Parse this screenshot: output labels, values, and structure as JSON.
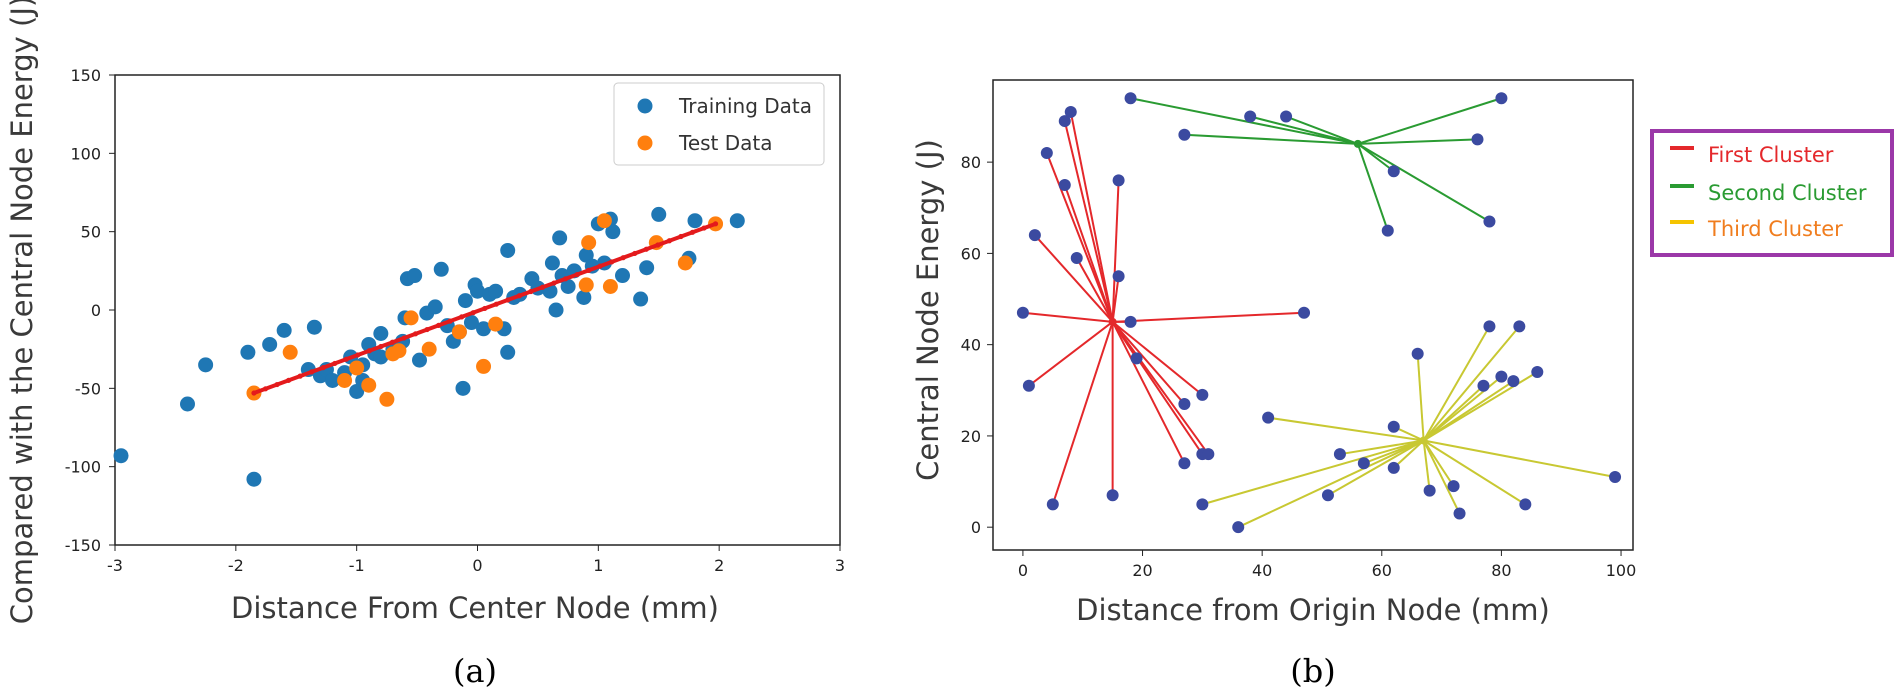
{
  "chart_data": [
    {
      "id": "a",
      "type": "scatter",
      "caption": "(a)",
      "xlabel": "Distance From Center Node (mm)",
      "ylabel": "Compared with the Central Node Energy (J)",
      "xlim": [
        -3,
        3
      ],
      "ylim": [
        -150,
        150
      ],
      "xticks": [
        "-3",
        "-2",
        "-1",
        "0",
        "1",
        "2",
        "3"
      ],
      "yticks": [
        "150",
        "100",
        "50",
        "0",
        "-50",
        "-100",
        "-150"
      ],
      "legend": {
        "placement": "top-right",
        "entries": [
          "Training Data",
          "Test Data"
        ]
      },
      "colors": {
        "training": "#1f77b4",
        "test": "#ff7f0e",
        "fit": "#e41a1c"
      },
      "series": [
        {
          "name": "Training Data",
          "points": [
            [
              -2.95,
              -93
            ],
            [
              -2.4,
              -60
            ],
            [
              -2.25,
              -35
            ],
            [
              -1.9,
              -27
            ],
            [
              -1.85,
              -108
            ],
            [
              -1.72,
              -22
            ],
            [
              -1.6,
              -13
            ],
            [
              -1.35,
              -11
            ],
            [
              -1.4,
              -38
            ],
            [
              -1.3,
              -42
            ],
            [
              -1.25,
              -38
            ],
            [
              -1.2,
              -45
            ],
            [
              -1.1,
              -40
            ],
            [
              -1.05,
              -30
            ],
            [
              -1.0,
              -52
            ],
            [
              -0.95,
              -45
            ],
            [
              -0.95,
              -35
            ],
            [
              -0.9,
              -22
            ],
            [
              -0.85,
              -28
            ],
            [
              -0.8,
              -15
            ],
            [
              -0.8,
              -30
            ],
            [
              -0.7,
              -25
            ],
            [
              -0.62,
              -20
            ],
            [
              -0.6,
              -5
            ],
            [
              -0.58,
              20
            ],
            [
              -0.52,
              22
            ],
            [
              -0.48,
              -32
            ],
            [
              -0.42,
              -2
            ],
            [
              -0.35,
              2
            ],
            [
              -0.3,
              26
            ],
            [
              -0.25,
              -10
            ],
            [
              -0.2,
              -20
            ],
            [
              -0.15,
              -14
            ],
            [
              -0.12,
              -50
            ],
            [
              -0.1,
              6
            ],
            [
              -0.05,
              -8
            ],
            [
              -0.02,
              16
            ],
            [
              0.0,
              12
            ],
            [
              0.05,
              -12
            ],
            [
              0.1,
              10
            ],
            [
              0.15,
              12
            ],
            [
              0.22,
              -12
            ],
            [
              0.25,
              38
            ],
            [
              0.25,
              -27
            ],
            [
              0.3,
              8
            ],
            [
              0.35,
              10
            ],
            [
              0.45,
              20
            ],
            [
              0.5,
              14
            ],
            [
              0.6,
              12
            ],
            [
              0.62,
              30
            ],
            [
              0.65,
              0
            ],
            [
              0.68,
              46
            ],
            [
              0.7,
              22
            ],
            [
              0.75,
              15
            ],
            [
              0.8,
              25
            ],
            [
              0.88,
              8
            ],
            [
              0.9,
              35
            ],
            [
              0.95,
              28
            ],
            [
              1.0,
              55
            ],
            [
              1.05,
              30
            ],
            [
              1.1,
              58
            ],
            [
              1.12,
              50
            ],
            [
              1.2,
              22
            ],
            [
              1.35,
              7
            ],
            [
              1.4,
              27
            ],
            [
              1.5,
              61
            ],
            [
              1.75,
              33
            ],
            [
              1.8,
              57
            ],
            [
              2.15,
              57
            ]
          ]
        },
        {
          "name": "Test Data",
          "points": [
            [
              -1.85,
              -53
            ],
            [
              -1.55,
              -27
            ],
            [
              -1.1,
              -45
            ],
            [
              -1.0,
              -37
            ],
            [
              -0.9,
              -48
            ],
            [
              -0.75,
              -57
            ],
            [
              -0.7,
              -28
            ],
            [
              -0.65,
              -26
            ],
            [
              -0.55,
              -5
            ],
            [
              -0.4,
              -25
            ],
            [
              -0.15,
              -14
            ],
            [
              0.05,
              -36
            ],
            [
              0.15,
              -9
            ],
            [
              0.9,
              16
            ],
            [
              0.92,
              43
            ],
            [
              1.05,
              57
            ],
            [
              1.1,
              15
            ],
            [
              1.48,
              43
            ],
            [
              1.72,
              30
            ],
            [
              1.97,
              55
            ]
          ]
        }
      ],
      "fit_line": {
        "x": [
          -1.85,
          1.97
        ],
        "y": [
          -53,
          55
        ]
      }
    },
    {
      "id": "b",
      "type": "scatter",
      "caption": "(b)",
      "xlabel": "Distance from Origin Node (mm)",
      "ylabel": "Central Node Energy (J)",
      "xlim": [
        -5,
        102
      ],
      "ylim": [
        -5,
        98
      ],
      "xticks": [
        "0",
        "20",
        "40",
        "60",
        "80",
        "100"
      ],
      "yticks": [
        "0",
        "20",
        "40",
        "60",
        "80"
      ],
      "legend": {
        "placement": "right-outside",
        "border_color": "#9b38a8"
      },
      "clusters": [
        {
          "name": "First Cluster",
          "color": "#e4282b",
          "center": [
            15,
            45
          ],
          "points": [
            [
              0,
              47
            ],
            [
              1,
              31
            ],
            [
              2,
              64
            ],
            [
              4,
              82
            ],
            [
              5,
              5
            ],
            [
              7,
              89
            ],
            [
              8,
              91
            ],
            [
              7,
              75
            ],
            [
              9,
              59
            ],
            [
              15,
              7
            ],
            [
              16,
              76
            ],
            [
              16,
              55
            ],
            [
              18,
              45
            ],
            [
              19,
              37
            ],
            [
              27,
              27
            ],
            [
              27,
              14
            ],
            [
              30,
              29
            ],
            [
              30,
              16
            ],
            [
              31,
              16
            ],
            [
              47,
              47
            ]
          ]
        },
        {
          "name": "Second Cluster",
          "color": "#2a9b32",
          "center": [
            56,
            84
          ],
          "points": [
            [
              18,
              94
            ],
            [
              27,
              86
            ],
            [
              38,
              90
            ],
            [
              44,
              90
            ],
            [
              62,
              78
            ],
            [
              61,
              65
            ],
            [
              76,
              85
            ],
            [
              78,
              67
            ],
            [
              80,
              94
            ]
          ]
        },
        {
          "name": "Third Cluster",
          "color": "#c8c832",
          "center": [
            67,
            19
          ],
          "points": [
            [
              30,
              5
            ],
            [
              36,
              0
            ],
            [
              41,
              24
            ],
            [
              51,
              7
            ],
            [
              53,
              16
            ],
            [
              57,
              14
            ],
            [
              62,
              22
            ],
            [
              62,
              13
            ],
            [
              66,
              38
            ],
            [
              68,
              8
            ],
            [
              72,
              9
            ],
            [
              73,
              3
            ],
            [
              77,
              31
            ],
            [
              78,
              44
            ],
            [
              80,
              33
            ],
            [
              82,
              32
            ],
            [
              83,
              44
            ],
            [
              84,
              5
            ],
            [
              86,
              34
            ],
            [
              99,
              11
            ]
          ]
        }
      ],
      "legend_text_colors": {
        "First Cluster": "#e4282b",
        "Second Cluster": "#2a9b32",
        "Third Cluster": "#f07d1e"
      },
      "point_color": "#3b4aa0"
    }
  ]
}
